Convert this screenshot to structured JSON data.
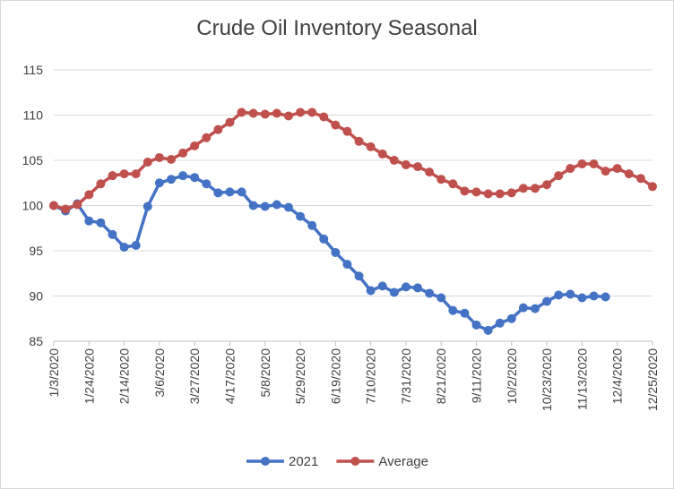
{
  "chart_data": {
    "type": "line",
    "title": "Crude Oil Inventory Seasonal",
    "xlabel": "",
    "ylabel": "",
    "ylim": [
      85,
      115
    ],
    "y_ticks": [
      85,
      90,
      95,
      100,
      105,
      110,
      115
    ],
    "x_ticks": [
      "1/3/2020",
      "1/24/2020",
      "2/14/2020",
      "3/6/2020",
      "3/27/2020",
      "4/17/2020",
      "5/8/2020",
      "5/29/2020",
      "6/19/2020",
      "7/10/2020",
      "7/31/2020",
      "8/21/2020",
      "9/11/2020",
      "10/2/2020",
      "10/23/2020",
      "11/13/2020",
      "12/4/2020",
      "12/25/2020"
    ],
    "grid": "horizontal",
    "legend_position": "bottom",
    "series": [
      {
        "name": "2021",
        "color": "#4472c4",
        "values": [
          100.0,
          99.4,
          100.2,
          98.3,
          98.1,
          96.8,
          95.4,
          95.6,
          99.9,
          102.5,
          102.9,
          103.3,
          103.1,
          102.4,
          101.4,
          101.5,
          101.5,
          100.0,
          99.9,
          100.1,
          99.8,
          98.8,
          97.8,
          96.3,
          94.8,
          93.5,
          92.2,
          90.6,
          91.1,
          90.4,
          91.0,
          90.9,
          90.3,
          89.8,
          88.4,
          88.1,
          86.8,
          86.2,
          87.0,
          87.5,
          88.7,
          88.6,
          89.4,
          90.1,
          90.2,
          89.8,
          90.0,
          89.9
        ]
      },
      {
        "name": "Average",
        "color": "#c0504d",
        "values": [
          100.0,
          99.6,
          100.1,
          101.2,
          102.4,
          103.3,
          103.5,
          103.5,
          104.8,
          105.3,
          105.1,
          105.8,
          106.6,
          107.5,
          108.4,
          109.2,
          110.3,
          110.2,
          110.1,
          110.2,
          109.9,
          110.3,
          110.3,
          109.8,
          108.9,
          108.2,
          107.1,
          106.5,
          105.7,
          105.0,
          104.5,
          104.3,
          103.7,
          102.9,
          102.4,
          101.6,
          101.5,
          101.3,
          101.3,
          101.4,
          101.9,
          101.9,
          102.3,
          103.3,
          104.1,
          104.6,
          104.6,
          103.8,
          104.1,
          103.5,
          103.0,
          102.1
        ]
      }
    ]
  }
}
